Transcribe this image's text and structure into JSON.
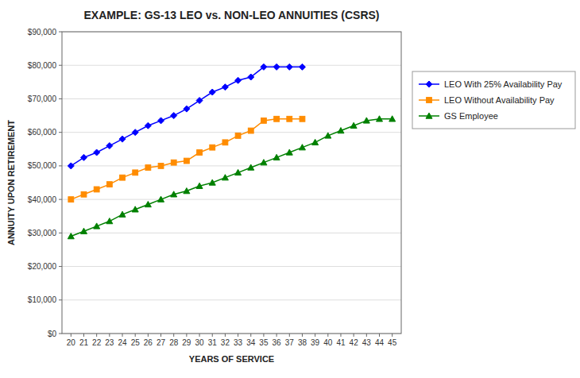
{
  "chart_data": {
    "type": "line",
    "title": "EXAMPLE: GS-13 LEO vs. NON-LEO ANNUITIES (CSRS)",
    "xlabel": "YEARS OF SERVICE",
    "ylabel": "ANNUITY UPON RETIREMENT",
    "x": [
      20,
      21,
      22,
      23,
      24,
      25,
      26,
      27,
      28,
      29,
      30,
      31,
      32,
      33,
      34,
      35,
      36,
      37,
      38,
      39,
      40,
      41,
      42,
      43,
      44,
      45
    ],
    "xlim": [
      19.3,
      45.7
    ],
    "xticks": [
      20,
      21,
      22,
      23,
      24,
      25,
      26,
      27,
      28,
      29,
      30,
      31,
      32,
      33,
      34,
      35,
      36,
      37,
      38,
      39,
      40,
      41,
      42,
      43,
      44,
      45
    ],
    "ylim": [
      0,
      90000
    ],
    "yticks": [
      {
        "value": 0,
        "label": "$0"
      },
      {
        "value": 10000,
        "label": "$10,000"
      },
      {
        "value": 20000,
        "label": "$20,000"
      },
      {
        "value": 30000,
        "label": "$30,000"
      },
      {
        "value": 40000,
        "label": "$40,000"
      },
      {
        "value": 50000,
        "label": "$50,000"
      },
      {
        "value": 60000,
        "label": "$60,000"
      },
      {
        "value": 70000,
        "label": "$70,000"
      },
      {
        "value": 80000,
        "label": "$80,000"
      },
      {
        "value": 90000,
        "label": "$90,000"
      }
    ],
    "grid": true,
    "legend": "right",
    "series": [
      {
        "name": "LEO With 25% Availability Pay",
        "color": "#0000FF",
        "marker": "diamond",
        "values": [
          50000,
          52500,
          54000,
          56000,
          58000,
          60000,
          62000,
          63500,
          65000,
          67000,
          69500,
          72000,
          73500,
          75500,
          76500,
          79500,
          79500,
          79500,
          79500,
          null,
          null,
          null,
          null,
          null,
          null,
          null
        ]
      },
      {
        "name": "LEO Without Availability Pay",
        "color": "#FF8C00",
        "marker": "square",
        "values": [
          40000,
          41500,
          43000,
          44500,
          46500,
          48000,
          49500,
          50000,
          51000,
          51500,
          54000,
          55500,
          57000,
          59000,
          60500,
          63500,
          64000,
          64000,
          64000,
          null,
          null,
          null,
          null,
          null,
          null,
          null
        ]
      },
      {
        "name": "GS Employee",
        "color": "#008000",
        "marker": "triangle",
        "values": [
          29000,
          30500,
          32000,
          33500,
          35500,
          37000,
          38500,
          40000,
          41500,
          42500,
          44000,
          45000,
          46500,
          48000,
          49500,
          51000,
          52500,
          54000,
          55500,
          57000,
          59000,
          60500,
          62000,
          63500,
          64000,
          64000
        ]
      }
    ]
  }
}
